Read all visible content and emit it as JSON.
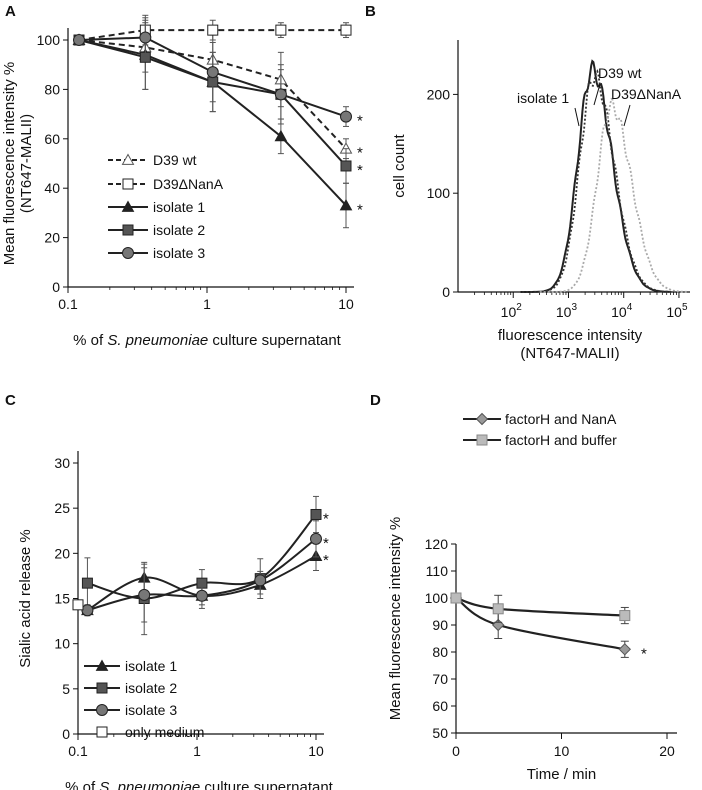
{
  "chart_data": [
    {
      "panel": "A",
      "type": "line",
      "xscale": "log",
      "xlim": [
        0.1,
        10
      ],
      "ylim": [
        0,
        100
      ],
      "yticks": [
        "0",
        "20",
        "40",
        "60",
        "80",
        "100"
      ],
      "xticks": [
        "0.1",
        "1",
        "10"
      ],
      "ylabel": "Mean fluorescence intensity % (NT647-MALII)",
      "xlabel_parts": [
        "% of ",
        "S. pneumoniae",
        " culture supernatant"
      ],
      "x": [
        0.12,
        0.36,
        1.1,
        3.4,
        10
      ],
      "series": [
        {
          "name": "D39 wt",
          "marker": "triangle-open",
          "dashed": true,
          "values": [
            100,
            97,
            92,
            84,
            56
          ],
          "errors": [
            0,
            10,
            10,
            11,
            4
          ]
        },
        {
          "name": "D39ΔNanA",
          "marker": "square-open",
          "dashed": true,
          "values": [
            100,
            104,
            104,
            104,
            104
          ],
          "errors": [
            0,
            6,
            4,
            3,
            3
          ]
        },
        {
          "name": "isolate 1",
          "marker": "triangle",
          "dashed": false,
          "values": [
            100,
            94,
            83,
            61,
            33
          ],
          "errors": [
            0,
            14,
            12,
            7,
            9
          ]
        },
        {
          "name": "isolate 2",
          "marker": "square",
          "dashed": false,
          "values": [
            100,
            93,
            83,
            78,
            49
          ],
          "errors": [
            0,
            13,
            12,
            12,
            7
          ]
        },
        {
          "name": "isolate 3",
          "marker": "circle",
          "dashed": false,
          "values": [
            100,
            101,
            87,
            78,
            69
          ],
          "errors": [
            0,
            8,
            12,
            10,
            4
          ]
        }
      ],
      "significance": [
        "*",
        "*",
        "*",
        "*"
      ]
    },
    {
      "panel": "B",
      "type": "histogram",
      "xscale": "log",
      "xlim": [
        10,
        100000
      ],
      "ylim": [
        0,
        250
      ],
      "yticks": [
        "0",
        "100",
        "200"
      ],
      "xtick_exponents": [
        "2",
        "3",
        "4",
        "5"
      ],
      "ylabel": "cell count",
      "xlabel": "fluorescence intensity",
      "xlabel2": "(NT647-MALII)",
      "series": [
        {
          "name": "isolate 1",
          "style": "solid",
          "peak_x": 2700,
          "peak_y": 225
        },
        {
          "name": "D39 wt",
          "style": "dotted-dark",
          "peak_x": 2900,
          "peak_y": 218
        },
        {
          "name": "D39ΔNanA",
          "style": "dotted-light",
          "peak_x": 6000,
          "peak_y": 188
        }
      ]
    },
    {
      "panel": "C",
      "type": "line",
      "xscale": "log",
      "xlim": [
        0.1,
        10
      ],
      "ylim": [
        0,
        30
      ],
      "yticks": [
        "0",
        "5",
        "10",
        "15",
        "20",
        "25",
        "30"
      ],
      "xticks": [
        "0.1",
        "1",
        "10"
      ],
      "ylabel": "Sialic acid release %",
      "xlabel_parts": [
        "% of ",
        "S. pneumoniae",
        " culture supernatant"
      ],
      "x": [
        0.12,
        0.36,
        1.1,
        3.4,
        10
      ],
      "series": [
        {
          "name": "isolate 1",
          "marker": "triangle",
          "values": [
            13.7,
            17.3,
            15.3,
            16.5,
            19.7
          ],
          "errors": [
            0.6,
            1.5,
            1.0,
            1.0,
            1.6
          ]
        },
        {
          "name": "isolate 2",
          "marker": "square",
          "values": [
            16.7,
            15.0,
            16.7,
            17.2,
            24.3
          ],
          "errors": [
            2.8,
            4.0,
            1.5,
            2.2,
            2.0
          ]
        },
        {
          "name": "isolate 3",
          "marker": "circle",
          "values": [
            13.7,
            15.4,
            15.3,
            17.0,
            21.6
          ],
          "errors": [
            0.6,
            3.0,
            1.4,
            1.0,
            2.0
          ]
        },
        {
          "name": "only medium",
          "marker": "square-open",
          "x": [
            0.1
          ],
          "values": [
            14.3
          ],
          "errors": [
            0
          ]
        }
      ],
      "significance": [
        "*",
        "*",
        "*"
      ]
    },
    {
      "panel": "D",
      "type": "line",
      "xlim": [
        0,
        20
      ],
      "ylim": [
        50,
        120
      ],
      "yticks": [
        "50",
        "60",
        "70",
        "80",
        "90",
        "100",
        "110",
        "120"
      ],
      "xticks": [
        "0",
        "10",
        "20"
      ],
      "ylabel": "Mean fluorescence intensity %",
      "xlabel": "Time / min",
      "x": [
        0,
        4,
        16
      ],
      "series": [
        {
          "name": "factorH and NanA",
          "marker": "diamond",
          "values": [
            100,
            90,
            81
          ],
          "errors": [
            0,
            5,
            3
          ]
        },
        {
          "name": "factorH and buffer",
          "marker": "square-light",
          "values": [
            100,
            96,
            93.5
          ],
          "errors": [
            0,
            5,
            3
          ]
        }
      ],
      "significance": [
        "*"
      ]
    }
  ],
  "panels": {
    "A": "A",
    "B": "B",
    "C": "C",
    "D": "D"
  },
  "annotations_B": {
    "isolate1": "isolate 1",
    "d39wt": "D39 wt",
    "nanA": "D39ΔNanA"
  },
  "colors": {
    "dark": "#222222",
    "mid": "#555555",
    "light": "#bbbbbb",
    "axis": "#111111",
    "grey_dotted": "#aaaaaa"
  }
}
